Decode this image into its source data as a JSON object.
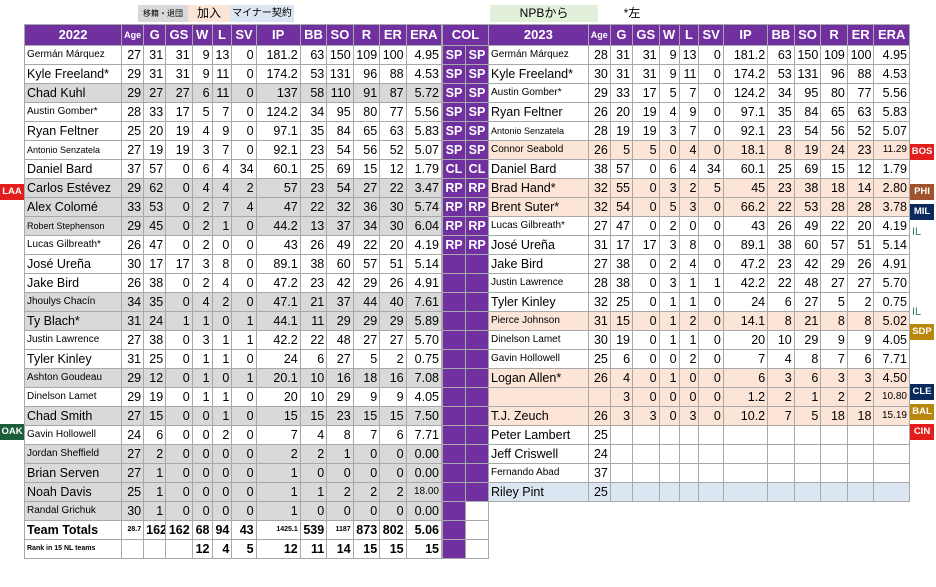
{
  "legend": {
    "transfer": "移籍・退団",
    "added": "加入",
    "minor": "マイナー契約",
    "npb": "NPBから",
    "lefty": "*左"
  },
  "colors": {
    "purple": "#7030a0",
    "gray": "#d9d9d9",
    "pink": "#fce4d6",
    "blue": "#dce6f2",
    "green": "#e2efda",
    "tag_red": "#e31c1c",
    "tag_phi": "#a0522d",
    "tag_navy": "#0b2a5c",
    "tag_olive": "#b8860b",
    "tag_oak": "#1d5e3a"
  },
  "headers": {
    "left_year": "2022",
    "right_year": "2023",
    "col": "COL",
    "age": "Age",
    "stats": [
      "G",
      "GS",
      "W",
      "L",
      "SV",
      "IP",
      "BB",
      "SO",
      "R",
      "ER",
      "ERA"
    ]
  },
  "left_rows": [
    {
      "name": "Germán Márquez",
      "size": "sm",
      "bg": "wh",
      "v": [
        "27",
        "31",
        "31",
        "9",
        "13",
        "0",
        "181.2",
        "63",
        "150",
        "109",
        "100",
        "4.95"
      ]
    },
    {
      "name": "Kyle Freeland*",
      "bg": "wh",
      "v": [
        "29",
        "31",
        "31",
        "9",
        "11",
        "0",
        "174.2",
        "53",
        "131",
        "96",
        "88",
        "4.53"
      ]
    },
    {
      "name": "Chad Kuhl",
      "bg": "g",
      "v": [
        "29",
        "27",
        "27",
        "6",
        "11",
        "0",
        "137",
        "58",
        "110",
        "91",
        "87",
        "5.72"
      ]
    },
    {
      "name": "Austin Gomber*",
      "size": "sm",
      "bg": "wh",
      "v": [
        "28",
        "33",
        "17",
        "5",
        "7",
        "0",
        "124.2",
        "34",
        "95",
        "80",
        "77",
        "5.56"
      ]
    },
    {
      "name": "Ryan Feltner",
      "bg": "wh",
      "v": [
        "25",
        "20",
        "19",
        "4",
        "9",
        "0",
        "97.1",
        "35",
        "84",
        "65",
        "63",
        "5.83"
      ]
    },
    {
      "name": "Antonio Senzatela",
      "size": "xs",
      "bg": "wh",
      "v": [
        "27",
        "19",
        "19",
        "3",
        "7",
        "0",
        "92.1",
        "23",
        "54",
        "56",
        "52",
        "5.07"
      ]
    },
    {
      "name": "Daniel Bard",
      "bg": "wh",
      "v": [
        "37",
        "57",
        "0",
        "6",
        "4",
        "34",
        "60.1",
        "25",
        "69",
        "15",
        "12",
        "1.79"
      ]
    },
    {
      "name": "Carlos Estévez",
      "bg": "g",
      "v": [
        "29",
        "62",
        "0",
        "4",
        "4",
        "2",
        "57",
        "23",
        "54",
        "27",
        "22",
        "3.47"
      ]
    },
    {
      "name": "Alex Colomé",
      "bg": "g",
      "v": [
        "33",
        "53",
        "0",
        "2",
        "7",
        "4",
        "47",
        "22",
        "32",
        "36",
        "30",
        "5.74"
      ]
    },
    {
      "name": "Robert Stephenson",
      "size": "xs",
      "bg": "g",
      "v": [
        "29",
        "45",
        "0",
        "2",
        "1",
        "0",
        "44.2",
        "13",
        "37",
        "34",
        "30",
        "6.04"
      ]
    },
    {
      "name": "Lucas Gilbreath*",
      "size": "sm",
      "bg": "wh",
      "v": [
        "26",
        "47",
        "0",
        "2",
        "0",
        "0",
        "43",
        "26",
        "49",
        "22",
        "20",
        "4.19"
      ]
    },
    {
      "name": "José Ureña",
      "bg": "wh",
      "v": [
        "30",
        "17",
        "17",
        "3",
        "8",
        "0",
        "89.1",
        "38",
        "60",
        "57",
        "51",
        "5.14"
      ]
    },
    {
      "name": "Jake Bird",
      "bg": "wh",
      "v": [
        "26",
        "38",
        "0",
        "2",
        "4",
        "0",
        "47.2",
        "23",
        "42",
        "29",
        "26",
        "4.91"
      ]
    },
    {
      "name": "Jhoulys Chacín",
      "size": "sm",
      "bg": "g",
      "v": [
        "34",
        "35",
        "0",
        "4",
        "2",
        "0",
        "47.1",
        "21",
        "37",
        "44",
        "40",
        "7.61"
      ]
    },
    {
      "name": "Ty Blach*",
      "bg": "g",
      "v": [
        "31",
        "24",
        "1",
        "1",
        "0",
        "1",
        "44.1",
        "11",
        "29",
        "29",
        "29",
        "5.89"
      ]
    },
    {
      "name": "Justin Lawrence",
      "size": "sm",
      "bg": "wh",
      "v": [
        "27",
        "38",
        "0",
        "3",
        "1",
        "1",
        "42.2",
        "22",
        "48",
        "27",
        "27",
        "5.70"
      ]
    },
    {
      "name": "Tyler Kinley",
      "bg": "wh",
      "v": [
        "31",
        "25",
        "0",
        "1",
        "1",
        "0",
        "24",
        "6",
        "27",
        "5",
        "2",
        "0.75"
      ]
    },
    {
      "name": "Ashton Goudeau",
      "size": "sm",
      "bg": "g",
      "v": [
        "29",
        "12",
        "0",
        "1",
        "0",
        "1",
        "20.1",
        "10",
        "16",
        "18",
        "16",
        "7.08"
      ]
    },
    {
      "name": "Dinelson Lamet",
      "size": "sm",
      "bg": "wh",
      "v": [
        "29",
        "19",
        "0",
        "1",
        "1",
        "0",
        "20",
        "10",
        "29",
        "9",
        "9",
        "4.05"
      ]
    },
    {
      "name": "Chad Smith",
      "bg": "g",
      "v": [
        "27",
        "15",
        "0",
        "0",
        "1",
        "0",
        "15",
        "15",
        "23",
        "15",
        "15",
        "7.50"
      ]
    },
    {
      "name": "Gavin Hollowell",
      "size": "sm",
      "bg": "wh",
      "v": [
        "24",
        "6",
        "0",
        "0",
        "2",
        "0",
        "7",
        "4",
        "8",
        "7",
        "6",
        "7.71"
      ]
    },
    {
      "name": "Jordan Sheffield",
      "size": "sm",
      "bg": "g",
      "v": [
        "27",
        "2",
        "0",
        "0",
        "0",
        "0",
        "2",
        "2",
        "1",
        "0",
        "0",
        "0.00"
      ]
    },
    {
      "name": "Brian Serven",
      "bg": "g",
      "v": [
        "27",
        "1",
        "0",
        "0",
        "0",
        "0",
        "1",
        "0",
        "0",
        "0",
        "0",
        "0.00"
      ]
    },
    {
      "name": "Noah Davis",
      "bg": "g",
      "v": [
        "25",
        "1",
        "0",
        "0",
        "0",
        "0",
        "1",
        "1",
        "2",
        "2",
        "2",
        "18.00"
      ]
    },
    {
      "name": "Randal Grichuk",
      "size": "sm",
      "bg": "g",
      "v": [
        "30",
        "1",
        "0",
        "0",
        "0",
        "0",
        "1",
        "0",
        "0",
        "0",
        "0",
        "0.00"
      ]
    }
  ],
  "totals": {
    "name": "Team Totals",
    "age": "28.7",
    "v": [
      "162",
      "162",
      "68",
      "94",
      "43",
      "1425.1",
      "539",
      "1187",
      "873",
      "802",
      "5.06"
    ]
  },
  "rank": {
    "label": "Rank in 15 NL teams",
    "v": [
      "",
      "",
      "12",
      "4",
      "5",
      "12",
      "11",
      "14",
      "15",
      "15",
      "15"
    ]
  },
  "positions": [
    "SP",
    "SP",
    "SP",
    "SP",
    "SP",
    "SP",
    "CL",
    "RP",
    "RP",
    "RP",
    "RP"
  ],
  "right_rows": [
    {
      "name": "Germán Márquez",
      "size": "sm",
      "bg": "wh",
      "v": [
        "28",
        "31",
        "31",
        "9",
        "13",
        "0",
        "181.2",
        "63",
        "150",
        "109",
        "100",
        "4.95"
      ]
    },
    {
      "name": "Kyle Freeland*",
      "bg": "wh",
      "v": [
        "30",
        "31",
        "31",
        "9",
        "11",
        "0",
        "174.2",
        "53",
        "131",
        "96",
        "88",
        "4.53"
      ]
    },
    {
      "name": "Austin Gomber*",
      "size": "sm",
      "bg": "wh",
      "v": [
        "29",
        "33",
        "17",
        "5",
        "7",
        "0",
        "124.2",
        "34",
        "95",
        "80",
        "77",
        "5.56"
      ]
    },
    {
      "name": "Ryan Feltner",
      "bg": "wh",
      "v": [
        "26",
        "20",
        "19",
        "4",
        "9",
        "0",
        "97.1",
        "35",
        "84",
        "65",
        "63",
        "5.83"
      ]
    },
    {
      "name": "Antonio Senzatela",
      "size": "xs",
      "bg": "wh",
      "v": [
        "28",
        "19",
        "19",
        "3",
        "7",
        "0",
        "92.1",
        "23",
        "54",
        "56",
        "52",
        "5.07"
      ]
    },
    {
      "name": "Connor Seabold",
      "size": "sm",
      "bg": "pk",
      "v": [
        "26",
        "5",
        "5",
        "0",
        "4",
        "0",
        "18.1",
        "8",
        "19",
        "24",
        "23",
        "11.29"
      ]
    },
    {
      "name": "Daniel Bard",
      "bg": "wh",
      "v": [
        "38",
        "57",
        "0",
        "6",
        "4",
        "34",
        "60.1",
        "25",
        "69",
        "15",
        "12",
        "1.79"
      ]
    },
    {
      "name": "Brad Hand*",
      "bg": "pk",
      "v": [
        "32",
        "55",
        "0",
        "3",
        "2",
        "5",
        "45",
        "23",
        "38",
        "18",
        "14",
        "2.80"
      ]
    },
    {
      "name": "Brent Suter*",
      "bg": "pk",
      "v": [
        "32",
        "54",
        "0",
        "5",
        "3",
        "0",
        "66.2",
        "22",
        "53",
        "28",
        "28",
        "3.78"
      ]
    },
    {
      "name": "Lucas Gilbreath*",
      "size": "sm",
      "bg": "wh",
      "v": [
        "27",
        "47",
        "0",
        "2",
        "0",
        "0",
        "43",
        "26",
        "49",
        "22",
        "20",
        "4.19"
      ]
    },
    {
      "name": "José Ureña",
      "bg": "wh",
      "v": [
        "31",
        "17",
        "17",
        "3",
        "8",
        "0",
        "89.1",
        "38",
        "60",
        "57",
        "51",
        "5.14"
      ]
    },
    {
      "name": "Jake Bird",
      "bg": "wh",
      "v": [
        "27",
        "38",
        "0",
        "2",
        "4",
        "0",
        "47.2",
        "23",
        "42",
        "29",
        "26",
        "4.91"
      ]
    },
    {
      "name": "Justin Lawrence",
      "size": "sm",
      "bg": "wh",
      "v": [
        "28",
        "38",
        "0",
        "3",
        "1",
        "1",
        "42.2",
        "22",
        "48",
        "27",
        "27",
        "5.70"
      ]
    },
    {
      "name": "Tyler Kinley",
      "bg": "wh",
      "v": [
        "32",
        "25",
        "0",
        "1",
        "1",
        "0",
        "24",
        "6",
        "27",
        "5",
        "2",
        "0.75"
      ]
    },
    {
      "name": "Pierce Johnson",
      "size": "sm",
      "bg": "pk",
      "v": [
        "31",
        "15",
        "0",
        "1",
        "2",
        "0",
        "14.1",
        "8",
        "21",
        "8",
        "8",
        "5.02"
      ]
    },
    {
      "name": "Dinelson Lamet",
      "size": "sm",
      "bg": "wh",
      "v": [
        "30",
        "19",
        "0",
        "1",
        "1",
        "0",
        "20",
        "10",
        "29",
        "9",
        "9",
        "4.05"
      ]
    },
    {
      "name": "Gavin Hollowell",
      "size": "sm",
      "bg": "wh",
      "v": [
        "25",
        "6",
        "0",
        "0",
        "2",
        "0",
        "7",
        "4",
        "8",
        "7",
        "6",
        "7.71"
      ]
    },
    {
      "name": "Logan Allen*",
      "bg": "pk",
      "v": [
        "26",
        "4",
        "0",
        "1",
        "0",
        "0",
        "6",
        "3",
        "6",
        "3",
        "3",
        "4.50"
      ]
    },
    {
      "name": "",
      "bg": "pk",
      "v": [
        "",
        "3",
        "0",
        "0",
        "0",
        "0",
        "1.2",
        "2",
        "1",
        "2",
        "2",
        "10.80"
      ]
    },
    {
      "name": "T.J. Zeuch",
      "bg": "pk",
      "v": [
        "26",
        "3",
        "3",
        "0",
        "3",
        "0",
        "10.2",
        "7",
        "5",
        "18",
        "18",
        "15.19"
      ]
    },
    {
      "name": "Peter Lambert",
      "bg": "wh",
      "v": [
        "25"
      ]
    },
    {
      "name": "Jeff Criswell",
      "bg": "wh",
      "v": [
        "24"
      ]
    },
    {
      "name": "Fernando Abad",
      "size": "sm",
      "bg": "wh",
      "v": [
        "37"
      ]
    },
    {
      "name": "Riley Pint",
      "bg": "bl",
      "v": [
        "25"
      ]
    }
  ],
  "tags": {
    "laa": "LAA",
    "oak": "OAK",
    "bos": "BOS",
    "phi": "PHI",
    "mil": "MIL",
    "sdp": "SDP",
    "cle": "CLE",
    "bal": "BAL",
    "cin": "CIN",
    "il1": "IL",
    "il2": "IL"
  }
}
